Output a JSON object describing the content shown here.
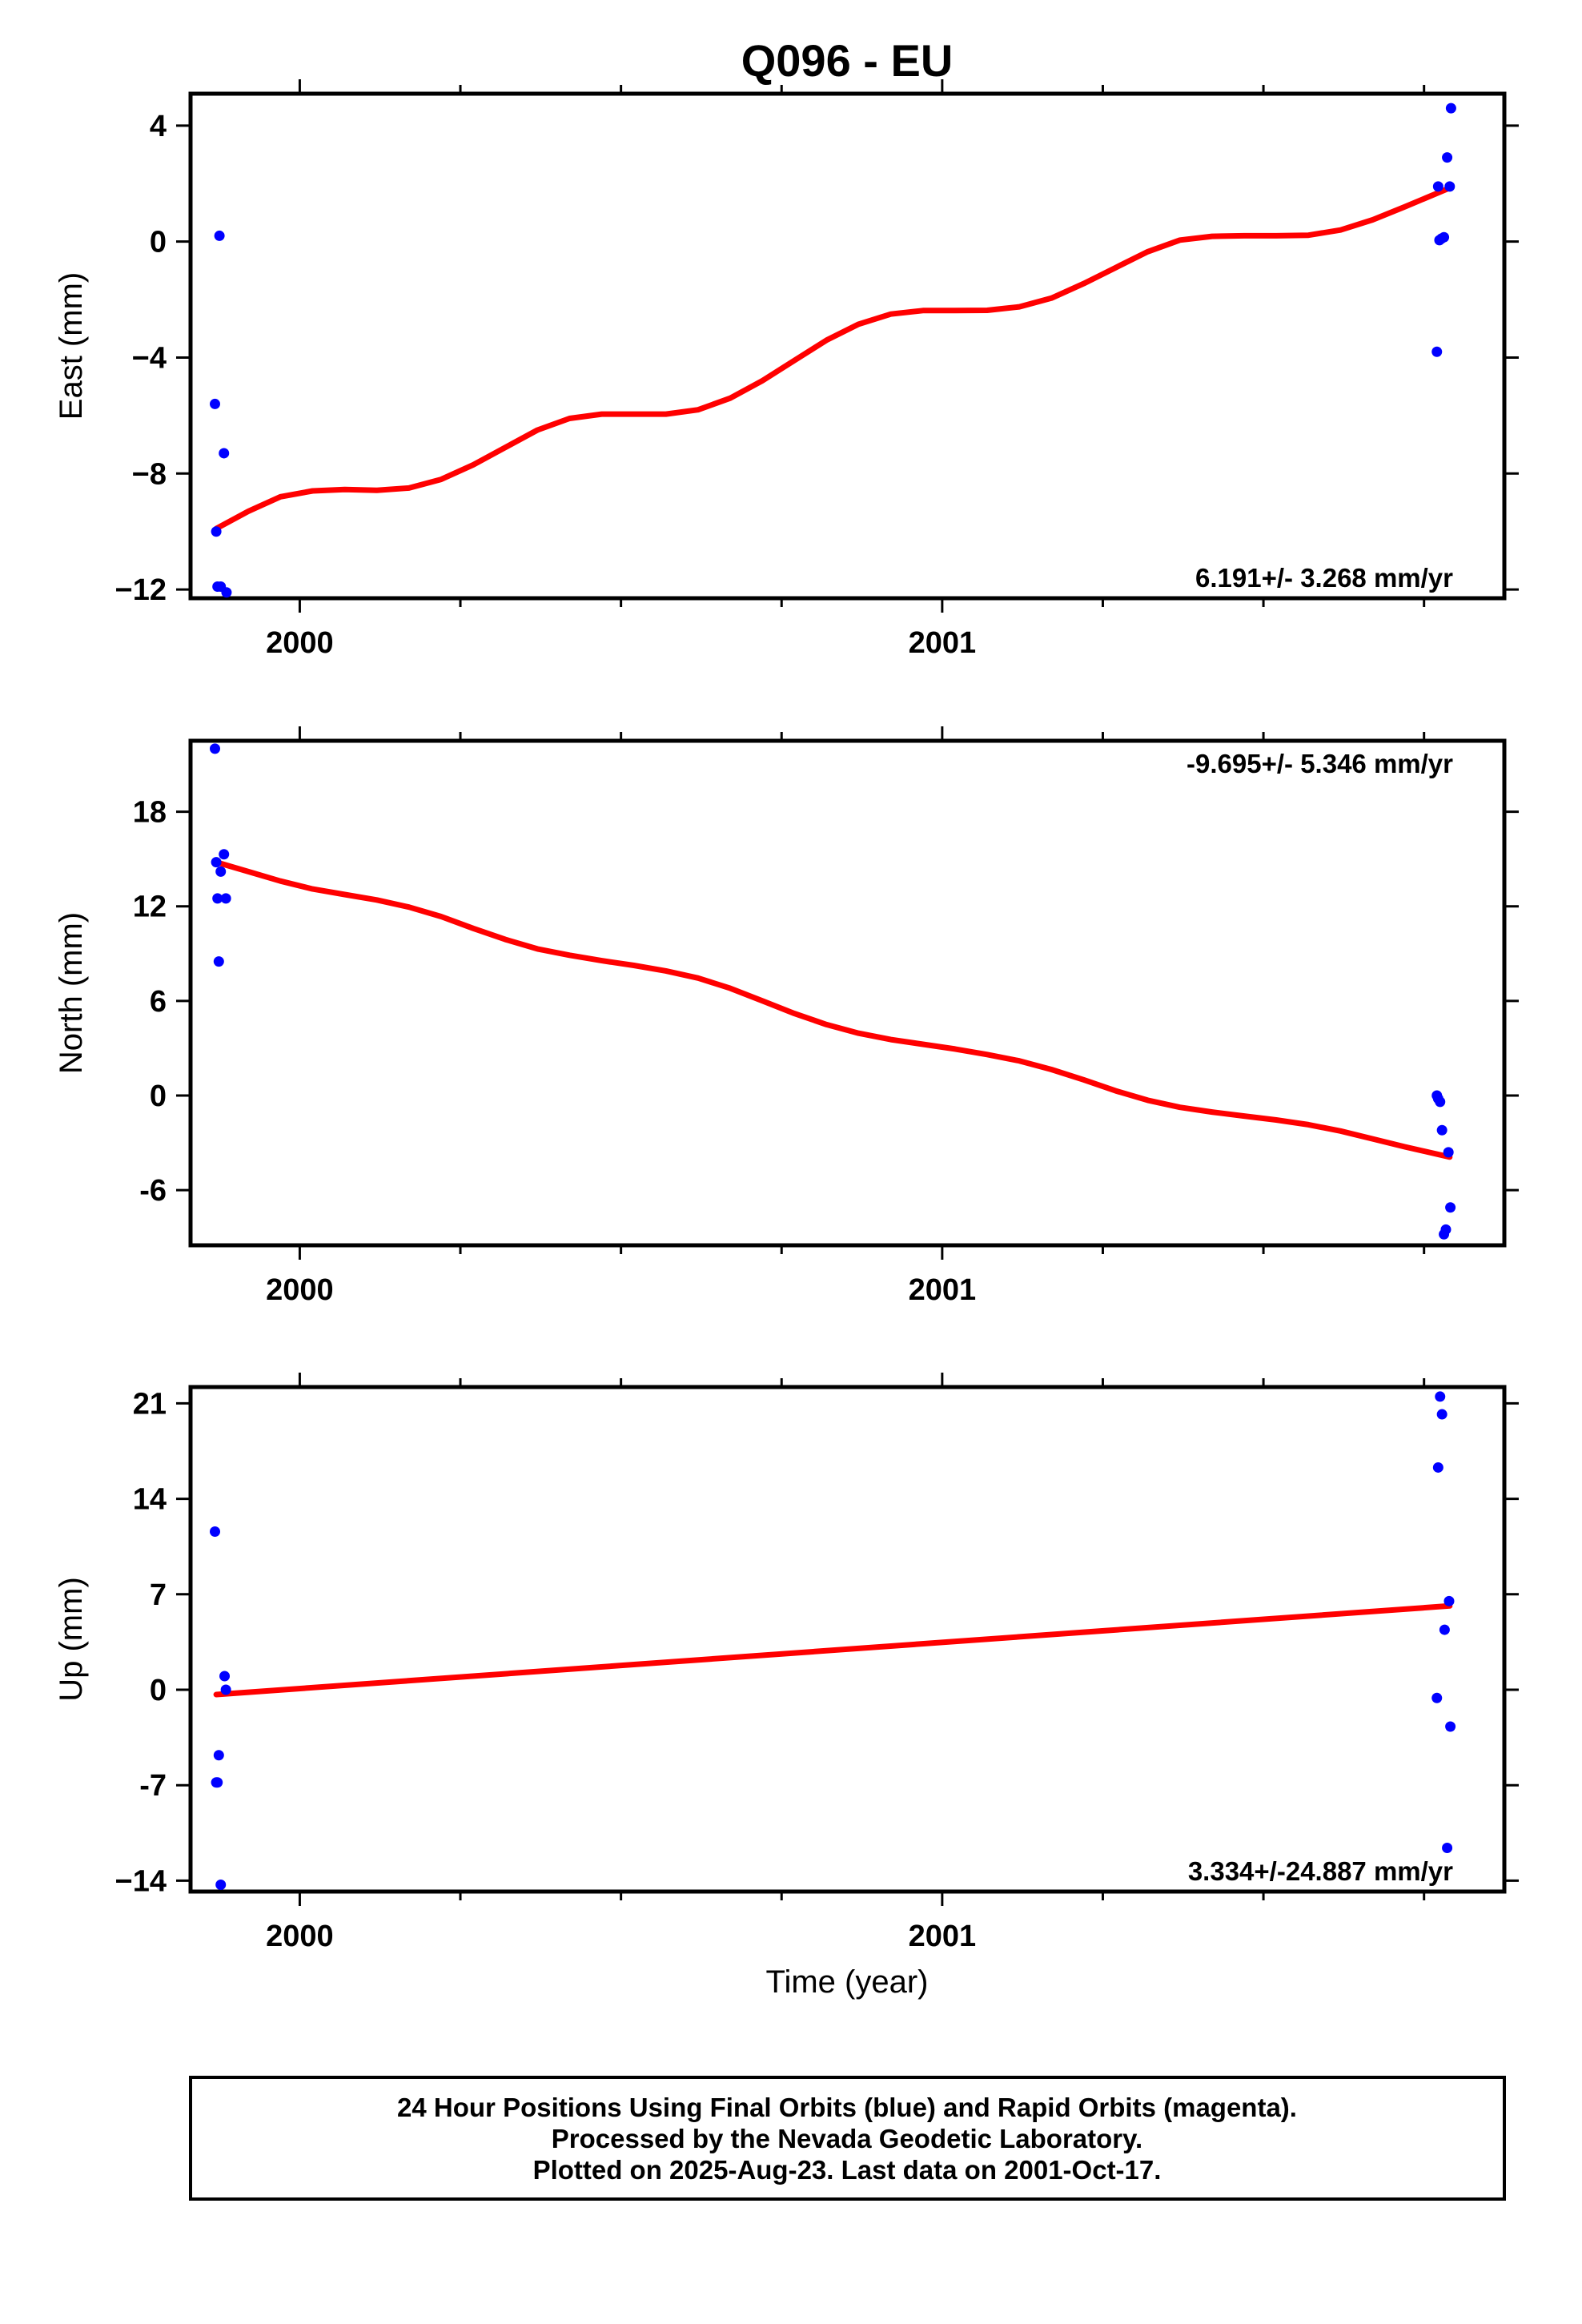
{
  "colors": {
    "points": "#0000ff",
    "fit": "#ff0000",
    "frame": "#000000"
  },
  "chart_data": {
    "type": "scatter",
    "title": "Q096 - EU",
    "xlabel": "Time (year)",
    "xlim": [
      1999.83,
      2001.875
    ],
    "xticks": [
      2000,
      2001
    ],
    "xtick_labels": [
      "2000",
      "2001"
    ],
    "panels": [
      {
        "id": "east",
        "ylabel": "East (mm)",
        "ylim": [
          -12.3,
          5.1
        ],
        "yticks": [
          4,
          0,
          -4,
          -8,
          -12
        ],
        "ytick_labels": [
          "4",
          "0",
          "−4",
          "−8",
          "−12"
        ],
        "rate_label": "6.191+/- 3.268 mm/yr",
        "rate_position": "bottom-right",
        "points": [
          {
            "x": 1999.868,
            "y": -5.6
          },
          {
            "x": 1999.87,
            "y": -10.0
          },
          {
            "x": 1999.872,
            "y": -11.9
          },
          {
            "x": 1999.875,
            "y": 0.2
          },
          {
            "x": 1999.877,
            "y": -11.9
          },
          {
            "x": 1999.882,
            "y": -7.3
          },
          {
            "x": 1999.886,
            "y": -12.1
          },
          {
            "x": 2001.77,
            "y": -3.8
          },
          {
            "x": 2001.772,
            "y": 1.9
          },
          {
            "x": 2001.774,
            "y": 0.05
          },
          {
            "x": 2001.777,
            "y": 0.1
          },
          {
            "x": 2001.781,
            "y": 0.15
          },
          {
            "x": 2001.786,
            "y": 2.9
          },
          {
            "x": 2001.79,
            "y": 1.9
          },
          {
            "x": 2001.792,
            "y": 4.6
          }
        ],
        "fit": {
          "x": [
            1999.87,
            1999.92,
            1999.97,
            2000.02,
            2000.07,
            2000.12,
            2000.17,
            2000.22,
            2000.27,
            2000.32,
            2000.37,
            2000.42,
            2000.47,
            2000.52,
            2000.57,
            2000.62,
            2000.67,
            2000.72,
            2000.77,
            2000.82,
            2000.87,
            2000.92,
            2000.97,
            2001.02,
            2001.07,
            2001.12,
            2001.17,
            2001.22,
            2001.27,
            2001.32,
            2001.37,
            2001.42,
            2001.47,
            2001.52,
            2001.57,
            2001.62,
            2001.67,
            2001.72,
            2001.79
          ],
          "y": [
            -9.9,
            -9.3,
            -8.8,
            -8.6,
            -8.55,
            -8.58,
            -8.5,
            -8.2,
            -7.7,
            -7.1,
            -6.5,
            -6.1,
            -5.95,
            -5.95,
            -5.95,
            -5.8,
            -5.4,
            -4.8,
            -4.1,
            -3.4,
            -2.85,
            -2.5,
            -2.38,
            -2.38,
            -2.37,
            -2.25,
            -1.95,
            -1.45,
            -0.9,
            -0.35,
            0.05,
            0.18,
            0.2,
            0.2,
            0.22,
            0.4,
            0.75,
            1.2,
            1.85
          ]
        }
      },
      {
        "id": "north",
        "ylabel": "North (mm)",
        "ylim": [
          -9.5,
          22.5
        ],
        "yticks": [
          18,
          12,
          6,
          0,
          -6
        ],
        "ytick_labels": [
          "18",
          "12",
          "6",
          "0",
          "-6"
        ],
        "rate_label": "-9.695+/- 5.346 mm/yr",
        "rate_position": "top-right",
        "points": [
          {
            "x": 1999.868,
            "y": 22.0
          },
          {
            "x": 1999.87,
            "y": 14.8
          },
          {
            "x": 1999.872,
            "y": 12.5
          },
          {
            "x": 1999.874,
            "y": 8.5
          },
          {
            "x": 1999.877,
            "y": 14.2
          },
          {
            "x": 1999.882,
            "y": 15.3
          },
          {
            "x": 1999.885,
            "y": 12.5
          },
          {
            "x": 2001.77,
            "y": 0.0
          },
          {
            "x": 2001.772,
            "y": -0.2
          },
          {
            "x": 2001.775,
            "y": -0.4
          },
          {
            "x": 2001.778,
            "y": -2.2
          },
          {
            "x": 2001.781,
            "y": -8.8
          },
          {
            "x": 2001.784,
            "y": -8.5
          },
          {
            "x": 2001.788,
            "y": -3.6
          },
          {
            "x": 2001.791,
            "y": -7.1
          }
        ],
        "fit": {
          "x": [
            1999.87,
            1999.92,
            1999.97,
            2000.02,
            2000.07,
            2000.12,
            2000.17,
            2000.22,
            2000.27,
            2000.32,
            2000.37,
            2000.42,
            2000.47,
            2000.52,
            2000.57,
            2000.62,
            2000.67,
            2000.72,
            2000.77,
            2000.82,
            2000.87,
            2000.92,
            2000.97,
            2001.02,
            2001.07,
            2001.12,
            2001.17,
            2001.22,
            2001.27,
            2001.32,
            2001.37,
            2001.42,
            2001.47,
            2001.52,
            2001.57,
            2001.62,
            2001.67,
            2001.72,
            2001.79
          ],
          "y": [
            14.8,
            14.2,
            13.6,
            13.1,
            12.75,
            12.4,
            11.95,
            11.35,
            10.6,
            9.9,
            9.3,
            8.9,
            8.55,
            8.25,
            7.9,
            7.45,
            6.8,
            6.0,
            5.2,
            4.5,
            3.95,
            3.55,
            3.25,
            2.95,
            2.6,
            2.2,
            1.65,
            1.0,
            0.3,
            -0.3,
            -0.75,
            -1.05,
            -1.3,
            -1.55,
            -1.85,
            -2.25,
            -2.75,
            -3.25,
            -3.9
          ]
        }
      },
      {
        "id": "up",
        "ylabel": "Up (mm)",
        "ylim": [
          -14.8,
          22.2
        ],
        "yticks": [
          21,
          14,
          7,
          0,
          -7,
          -14
        ],
        "ytick_labels": [
          "21",
          "14",
          "7",
          "0",
          "-7",
          "−14"
        ],
        "rate_label": "3.334+/-24.887 mm/yr",
        "rate_position": "bottom-right",
        "points": [
          {
            "x": 1999.868,
            "y": 11.6
          },
          {
            "x": 1999.87,
            "y": -6.8
          },
          {
            "x": 1999.872,
            "y": -6.8
          },
          {
            "x": 1999.874,
            "y": -4.8
          },
          {
            "x": 1999.877,
            "y": -14.3
          },
          {
            "x": 1999.883,
            "y": 1.0
          },
          {
            "x": 1999.885,
            "y": 0.0
          },
          {
            "x": 2001.77,
            "y": -0.6
          },
          {
            "x": 2001.772,
            "y": 16.3
          },
          {
            "x": 2001.775,
            "y": 21.5
          },
          {
            "x": 2001.778,
            "y": 20.2
          },
          {
            "x": 2001.782,
            "y": 4.4
          },
          {
            "x": 2001.786,
            "y": -11.6
          },
          {
            "x": 2001.789,
            "y": 6.5
          },
          {
            "x": 2001.791,
            "y": -2.7
          }
        ],
        "fit": {
          "x": [
            1999.87,
            2001.79
          ],
          "y": [
            -0.35,
            6.15
          ]
        }
      }
    ]
  },
  "footer": {
    "line1": "24 Hour Positions Using Final Orbits (blue) and Rapid Orbits (magenta).",
    "line2": "Processed by the Nevada Geodetic Laboratory.",
    "line3": "Plotted on 2025-Aug-23. Last data on 2001-Oct-17."
  }
}
